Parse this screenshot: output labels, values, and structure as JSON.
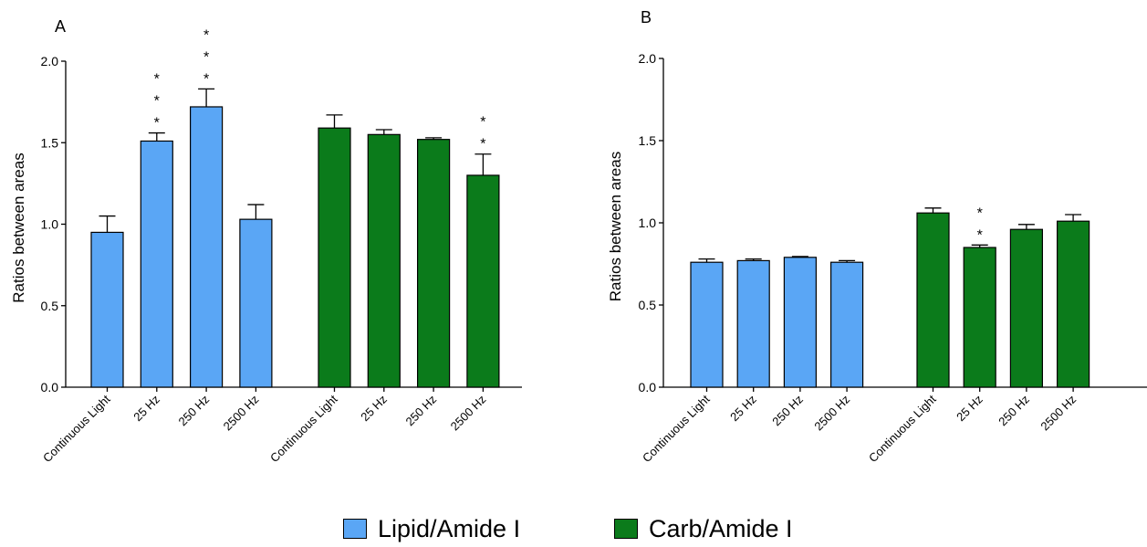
{
  "colors": {
    "lipid": "#5aa6f5",
    "carb": "#0b7b1b",
    "axis": "#000000"
  },
  "legend": [
    {
      "label": "Lipid/Amide I",
      "color": "#5aa6f5"
    },
    {
      "label": "Carb/Amide I",
      "color": "#0b7b1b"
    }
  ],
  "chart_data": [
    {
      "panel_label": "A",
      "type": "bar",
      "ylabel": "Ratios between areas",
      "xlabel": "",
      "ylim": [
        0,
        2.0
      ],
      "yticks": [
        "0.0",
        "0.5",
        "1.0",
        "1.5",
        "2.0"
      ],
      "grid": false,
      "groups": [
        {
          "name": "Lipid/Amide I",
          "color": "#5aa6f5",
          "categories": [
            "Continuous Light",
            "25 Hz",
            "250 Hz",
            "2500 Hz"
          ],
          "values": [
            0.95,
            1.51,
            1.72,
            1.03
          ],
          "errors": [
            0.1,
            0.05,
            0.11,
            0.09
          ],
          "significance": [
            "",
            "***",
            "***",
            ""
          ]
        },
        {
          "name": "Carb/Amide I",
          "color": "#0b7b1b",
          "categories": [
            "Continuous Light",
            "25 Hz",
            "250 Hz",
            "2500 Hz"
          ],
          "values": [
            1.59,
            1.55,
            1.52,
            1.3
          ],
          "errors": [
            0.08,
            0.03,
            0.01,
            0.13
          ],
          "significance": [
            "",
            "",
            "",
            "**"
          ]
        }
      ]
    },
    {
      "panel_label": "B",
      "type": "bar",
      "ylabel": "Ratios between areas",
      "xlabel": "",
      "ylim": [
        0,
        2.0
      ],
      "yticks": [
        "0.0",
        "0.5",
        "1.0",
        "1.5",
        "2.0"
      ],
      "grid": false,
      "groups": [
        {
          "name": "Lipid/Amide I",
          "color": "#5aa6f5",
          "categories": [
            "Continuous Light",
            "25 Hz",
            "250 Hz",
            "2500 Hz"
          ],
          "values": [
            0.76,
            0.77,
            0.79,
            0.76
          ],
          "errors": [
            0.02,
            0.01,
            0.005,
            0.01
          ],
          "significance": [
            "",
            "",
            "",
            ""
          ]
        },
        {
          "name": "Carb/Amide I",
          "color": "#0b7b1b",
          "categories": [
            "Continuous Light",
            "25 Hz",
            "250 Hz",
            "2500 Hz"
          ],
          "values": [
            1.06,
            0.85,
            0.96,
            1.01
          ],
          "errors": [
            0.03,
            0.015,
            0.03,
            0.04
          ],
          "significance": [
            "",
            "**",
            "",
            ""
          ]
        }
      ]
    }
  ]
}
